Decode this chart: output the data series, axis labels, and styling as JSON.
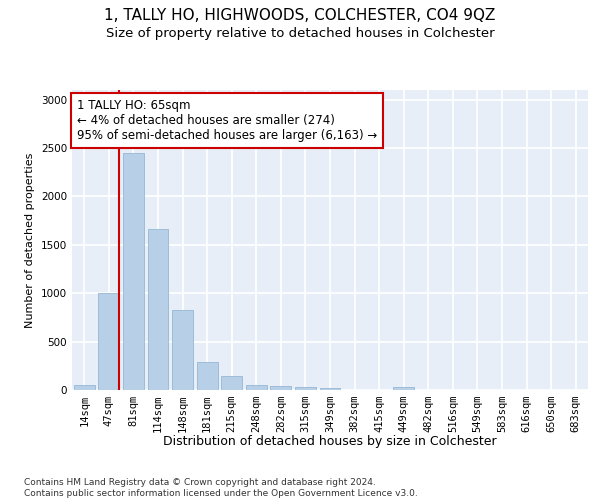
{
  "title": "1, TALLY HO, HIGHWOODS, COLCHESTER, CO4 9QZ",
  "subtitle": "Size of property relative to detached houses in Colchester",
  "xlabel": "Distribution of detached houses by size in Colchester",
  "ylabel": "Number of detached properties",
  "bar_labels": [
    "14sqm",
    "47sqm",
    "81sqm",
    "114sqm",
    "148sqm",
    "181sqm",
    "215sqm",
    "248sqm",
    "282sqm",
    "315sqm",
    "349sqm",
    "382sqm",
    "415sqm",
    "449sqm",
    "482sqm",
    "516sqm",
    "549sqm",
    "583sqm",
    "616sqm",
    "650sqm",
    "683sqm"
  ],
  "bar_values": [
    50,
    1000,
    2450,
    1660,
    825,
    290,
    145,
    55,
    40,
    30,
    20,
    0,
    0,
    30,
    0,
    0,
    0,
    0,
    0,
    0,
    0
  ],
  "bar_color": "#b8cfe8",
  "bar_edge_color": "#8aafd0",
  "vline_color": "#cc0000",
  "annotation_text": "1 TALLY HO: 65sqm\n← 4% of detached houses are smaller (274)\n95% of semi-detached houses are larger (6,163) →",
  "annotation_box_color": "#ffffff",
  "annotation_box_edge": "#cc0000",
  "ylim": [
    0,
    3100
  ],
  "yticks": [
    0,
    500,
    1000,
    1500,
    2000,
    2500,
    3000
  ],
  "bg_color": "#e8eef8",
  "grid_color": "#ffffff",
  "footer": "Contains HM Land Registry data © Crown copyright and database right 2024.\nContains public sector information licensed under the Open Government Licence v3.0.",
  "title_fontsize": 11,
  "subtitle_fontsize": 9.5,
  "xlabel_fontsize": 9,
  "ylabel_fontsize": 8,
  "tick_fontsize": 7.5,
  "annotation_fontsize": 8.5,
  "footer_fontsize": 6.5
}
